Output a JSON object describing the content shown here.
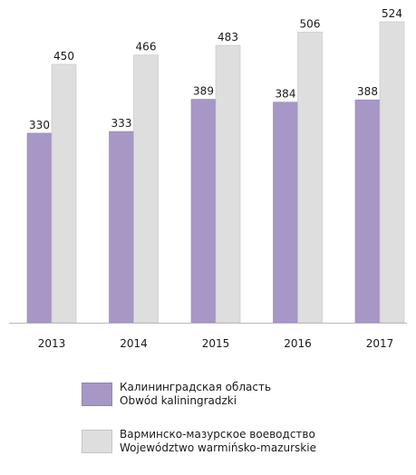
{
  "chart_data": {
    "type": "bar",
    "categories": [
      "2013",
      "2014",
      "2015",
      "2016",
      "2017"
    ],
    "series": [
      {
        "name_lines": [
          "Калининградская область",
          "Obwód kaliningradzki"
        ],
        "values": [
          330,
          333,
          389,
          384,
          388
        ],
        "color": "#a797c6",
        "stroke": "#9383b8"
      },
      {
        "name_lines": [
          "Варминско-мазурское воеводство",
          "Województwo warmińsko-mazurskie"
        ],
        "values": [
          450,
          466,
          483,
          506,
          524
        ],
        "color": "#dedede",
        "stroke": "#c4c4c4"
      }
    ],
    "ylim": [
      0,
      524
    ],
    "grid": false,
    "legend_position": "bottom"
  }
}
